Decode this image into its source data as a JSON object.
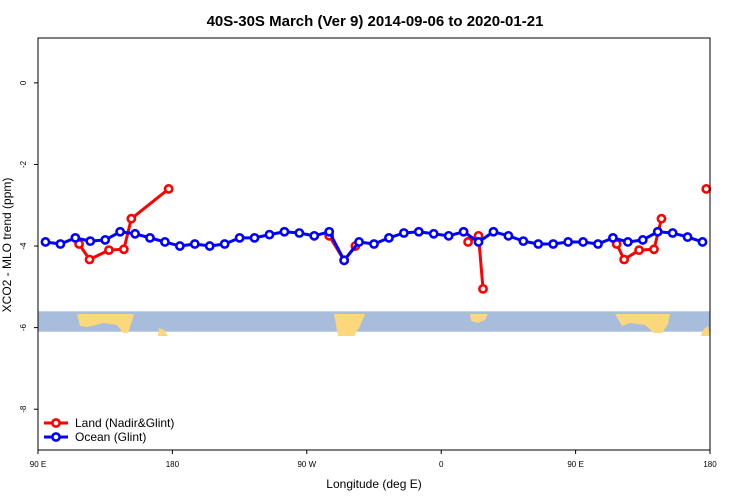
{
  "chart_data": {
    "type": "line",
    "title": "40S-30S March (Ver 9)   2014-09-06 to 2020-01-21",
    "xlabel": "Longitude (deg E)",
    "ylabel": "XCO2 - MLO trend (ppm)",
    "xlim": [
      90,
      540
    ],
    "ylim": [
      -9,
      1.1
    ],
    "x_ticks": [
      {
        "value": 90,
        "label": "90 E"
      },
      {
        "value": 180,
        "label": "180"
      },
      {
        "value": 270,
        "label": "90 W"
      },
      {
        "value": 360,
        "label": "0"
      },
      {
        "value": 450,
        "label": "90 E"
      },
      {
        "value": 540,
        "label": "180"
      }
    ],
    "y_ticks": [
      {
        "value": 0,
        "label": "0"
      },
      {
        "value": -2,
        "label": "-2"
      },
      {
        "value": -4,
        "label": "-4"
      },
      {
        "value": -6,
        "label": "-6"
      },
      {
        "value": -8,
        "label": "-8"
      }
    ],
    "map_band": {
      "y_top": -5.6,
      "y_bottom": -6.1,
      "ocean_color": "#a8bcdc",
      "land_color": "#fcd77b"
    },
    "legend": {
      "position": "bottom-left"
    },
    "series": [
      {
        "name": "Land (Nadir&Glint)",
        "color": "#ff0000",
        "segments": [
          [
            [
              117.5,
              -3.95
            ],
            [
              124.5,
              -4.33
            ],
            [
              137.5,
              -4.1
            ],
            [
              147.5,
              -4.08
            ],
            [
              152.5,
              -3.33
            ],
            [
              177.5,
              -2.6
            ]
          ],
          [
            [
              285,
              -3.75
            ],
            [
              295,
              -4.35
            ],
            [
              302.5,
              -4.0
            ]
          ],
          [
            [
              378,
              -3.9
            ],
            [
              385,
              -3.75
            ],
            [
              388,
              -5.05
            ]
          ],
          [
            [
              477.5,
              -3.95
            ],
            [
              482.5,
              -4.33
            ],
            [
              492.5,
              -4.1
            ],
            [
              502.5,
              -4.08
            ],
            [
              507.5,
              -3.33
            ]
          ],
          [
            [
              537.5,
              -2.6
            ]
          ]
        ]
      },
      {
        "name": "Ocean (Glint)",
        "color": "#0000ff",
        "segments": [
          [
            [
              95,
              -3.9
            ],
            [
              105,
              -3.95
            ],
            [
              115,
              -3.8
            ],
            [
              125,
              -3.88
            ],
            [
              135,
              -3.85
            ],
            [
              145,
              -3.65
            ],
            [
              155,
              -3.7
            ],
            [
              165,
              -3.8
            ],
            [
              175,
              -3.9
            ],
            [
              185,
              -4.0
            ],
            [
              195,
              -3.95
            ],
            [
              205,
              -4.0
            ],
            [
              215,
              -3.95
            ],
            [
              225,
              -3.8
            ],
            [
              235,
              -3.8
            ],
            [
              245,
              -3.72
            ],
            [
              255,
              -3.65
            ],
            [
              265,
              -3.68
            ],
            [
              275,
              -3.75
            ],
            [
              285,
              -3.65
            ],
            [
              295,
              -4.35
            ],
            [
              305,
              -3.9
            ],
            [
              315,
              -3.95
            ],
            [
              325,
              -3.8
            ],
            [
              335,
              -3.68
            ],
            [
              345,
              -3.65
            ],
            [
              355,
              -3.7
            ],
            [
              365,
              -3.75
            ],
            [
              375,
              -3.65
            ],
            [
              385,
              -3.9
            ],
            [
              395,
              -3.65
            ],
            [
              405,
              -3.75
            ],
            [
              415,
              -3.88
            ],
            [
              425,
              -3.95
            ],
            [
              435,
              -3.95
            ],
            [
              445,
              -3.9
            ],
            [
              455,
              -3.9
            ],
            [
              465,
              -3.95
            ],
            [
              475,
              -3.8
            ],
            [
              485,
              -3.9
            ],
            [
              495,
              -3.85
            ],
            [
              505,
              -3.65
            ],
            [
              515,
              -3.68
            ],
            [
              525,
              -3.78
            ],
            [
              535,
              -3.9
            ]
          ]
        ]
      }
    ]
  }
}
